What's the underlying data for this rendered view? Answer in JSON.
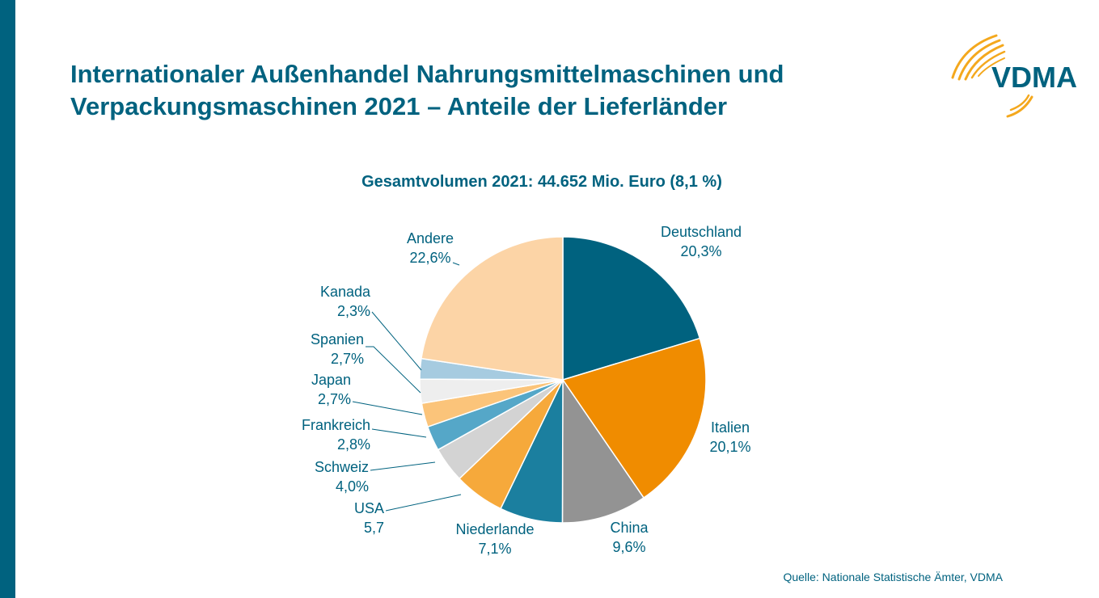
{
  "header": {
    "title_line1": "Internationaler Außenhandel Nahrungsmittelmaschinen und",
    "title_line2": "Verpackungsmaschinen 2021 – Anteile der Lieferländer",
    "logo_text": "VDMA"
  },
  "colors": {
    "brand": "#00627f",
    "logo_swoosh": "#f4a81d"
  },
  "chart_data": {
    "type": "pie",
    "title": "Gesamtvolumen 2021: 44.652 Mio. Euro (8,1 %)",
    "start_angle": "12 o'clock",
    "direction": "clockwise",
    "slices": [
      {
        "label": "Deutschland",
        "value": 20.3,
        "value_label": "20,3%",
        "color": "#00627f"
      },
      {
        "label": "Italien",
        "value": 20.1,
        "value_label": "20,1%",
        "color": "#f08c00"
      },
      {
        "label": "China",
        "value": 9.6,
        "value_label": "9,6%",
        "color": "#939393"
      },
      {
        "label": "Niederlande",
        "value": 7.1,
        "value_label": "7,1%",
        "color": "#1b7f9f"
      },
      {
        "label": "USA",
        "value": 5.7,
        "value_label": "5,7",
        "color": "#f6a93b"
      },
      {
        "label": "Schweiz",
        "value": 4.0,
        "value_label": "4,0%",
        "color": "#d3d3d3"
      },
      {
        "label": "Frankreich",
        "value": 2.8,
        "value_label": "2,8%",
        "color": "#55a7c8"
      },
      {
        "label": "Japan",
        "value": 2.7,
        "value_label": "2,7%",
        "color": "#fbc47a"
      },
      {
        "label": "Spanien",
        "value": 2.7,
        "value_label": "2,7%",
        "color": "#eeeeee"
      },
      {
        "label": "Kanada",
        "value": 2.3,
        "value_label": "2,3%",
        "color": "#a6cbe0"
      },
      {
        "label": "Andere",
        "value": 22.6,
        "value_label": "22,6%",
        "color": "#fcd4a6"
      }
    ]
  },
  "footer": {
    "source": "Quelle: Nationale Statistische Ämter, VDMA"
  }
}
